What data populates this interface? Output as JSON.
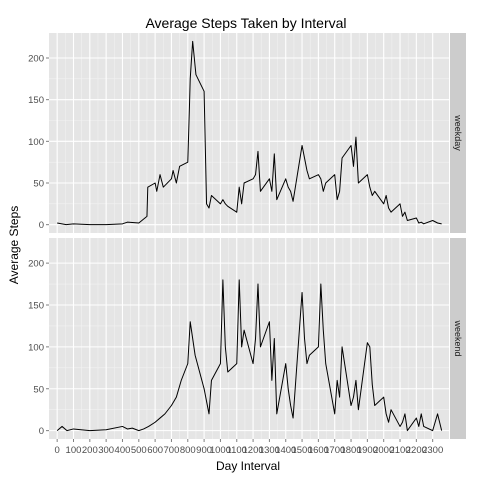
{
  "chart_data": {
    "type": "line",
    "title": "Average Steps Taken by Interval",
    "xlabel": "Day Interval",
    "ylabel": "Average Steps",
    "xlim": [
      -50,
      2400
    ],
    "ylim": [
      -10,
      230
    ],
    "x_ticks": [
      0,
      100,
      200,
      300,
      400,
      500,
      600,
      700,
      800,
      900,
      1000,
      1100,
      1200,
      1300,
      1400,
      1500,
      1600,
      1700,
      1800,
      1900,
      2000,
      2100,
      2200,
      2300
    ],
    "x_tick_labels": [
      "0",
      "100",
      "200",
      "300",
      "400",
      "500",
      "600",
      "700",
      "800",
      "900",
      "1000",
      "1100",
      "1200",
      "1300",
      "1400",
      "1500",
      "1600",
      "1700",
      "1800",
      "1900",
      "2000",
      "2100",
      "2200",
      "2300"
    ],
    "y_ticks": [
      0,
      50,
      100,
      150,
      200
    ],
    "y_tick_labels": [
      "0",
      "50",
      "100",
      "150",
      "200"
    ],
    "grid": true,
    "panels": [
      {
        "label": "weekday",
        "x": [
          0,
          55,
          100,
          200,
          300,
          400,
          430,
          500,
          550,
          555,
          600,
          610,
          630,
          650,
          700,
          710,
          730,
          750,
          800,
          810,
          815,
          830,
          840,
          845,
          850,
          900,
          915,
          930,
          945,
          1000,
          1015,
          1030,
          1045,
          1100,
          1115,
          1130,
          1145,
          1200,
          1215,
          1230,
          1245,
          1300,
          1315,
          1330,
          1345,
          1400,
          1415,
          1430,
          1445,
          1500,
          1515,
          1530,
          1545,
          1600,
          1615,
          1630,
          1645,
          1700,
          1715,
          1730,
          1745,
          1800,
          1815,
          1830,
          1845,
          1900,
          1915,
          1930,
          1945,
          2000,
          2015,
          2030,
          2045,
          2100,
          2115,
          2130,
          2145,
          2200,
          2215,
          2230,
          2245,
          2300,
          2330,
          2355
        ],
        "y": [
          2,
          0,
          1,
          0,
          0,
          1,
          3,
          2,
          10,
          45,
          50,
          40,
          60,
          45,
          55,
          65,
          50,
          70,
          75,
          140,
          175,
          220,
          200,
          190,
          180,
          160,
          25,
          20,
          35,
          25,
          30,
          25,
          22,
          15,
          45,
          25,
          50,
          55,
          60,
          88,
          40,
          55,
          40,
          85,
          30,
          55,
          45,
          40,
          28,
          95,
          80,
          65,
          55,
          60,
          55,
          40,
          50,
          60,
          30,
          40,
          80,
          95,
          70,
          105,
          50,
          60,
          45,
          35,
          40,
          25,
          35,
          20,
          15,
          25,
          10,
          15,
          5,
          8,
          2,
          3,
          1,
          5,
          2,
          1
        ],
        "line_color": "#000000"
      },
      {
        "label": "weekend",
        "x": [
          0,
          30,
          60,
          100,
          200,
          300,
          400,
          430,
          460,
          500,
          530,
          560,
          600,
          630,
          660,
          700,
          730,
          760,
          800,
          815,
          830,
          845,
          900,
          930,
          945,
          1000,
          1015,
          1030,
          1045,
          1100,
          1115,
          1130,
          1145,
          1200,
          1215,
          1230,
          1245,
          1300,
          1315,
          1330,
          1345,
          1400,
          1415,
          1430,
          1445,
          1500,
          1515,
          1530,
          1545,
          1600,
          1615,
          1630,
          1645,
          1700,
          1715,
          1730,
          1745,
          1800,
          1815,
          1830,
          1845,
          1900,
          1915,
          1930,
          1945,
          2000,
          2015,
          2030,
          2045,
          2100,
          2115,
          2130,
          2145,
          2200,
          2215,
          2230,
          2245,
          2300,
          2330,
          2355
        ],
        "y": [
          0,
          5,
          0,
          2,
          0,
          1,
          5,
          2,
          3,
          0,
          2,
          5,
          10,
          15,
          20,
          30,
          40,
          60,
          80,
          130,
          110,
          90,
          50,
          20,
          60,
          80,
          180,
          100,
          70,
          80,
          180,
          100,
          120,
          80,
          110,
          175,
          100,
          130,
          60,
          110,
          20,
          80,
          50,
          30,
          15,
          165,
          110,
          80,
          90,
          100,
          175,
          120,
          80,
          20,
          60,
          40,
          100,
          30,
          40,
          60,
          25,
          105,
          100,
          55,
          30,
          40,
          20,
          10,
          25,
          5,
          10,
          20,
          0,
          15,
          5,
          20,
          5,
          0,
          20,
          0
        ],
        "line_color": "#000000"
      }
    ]
  }
}
